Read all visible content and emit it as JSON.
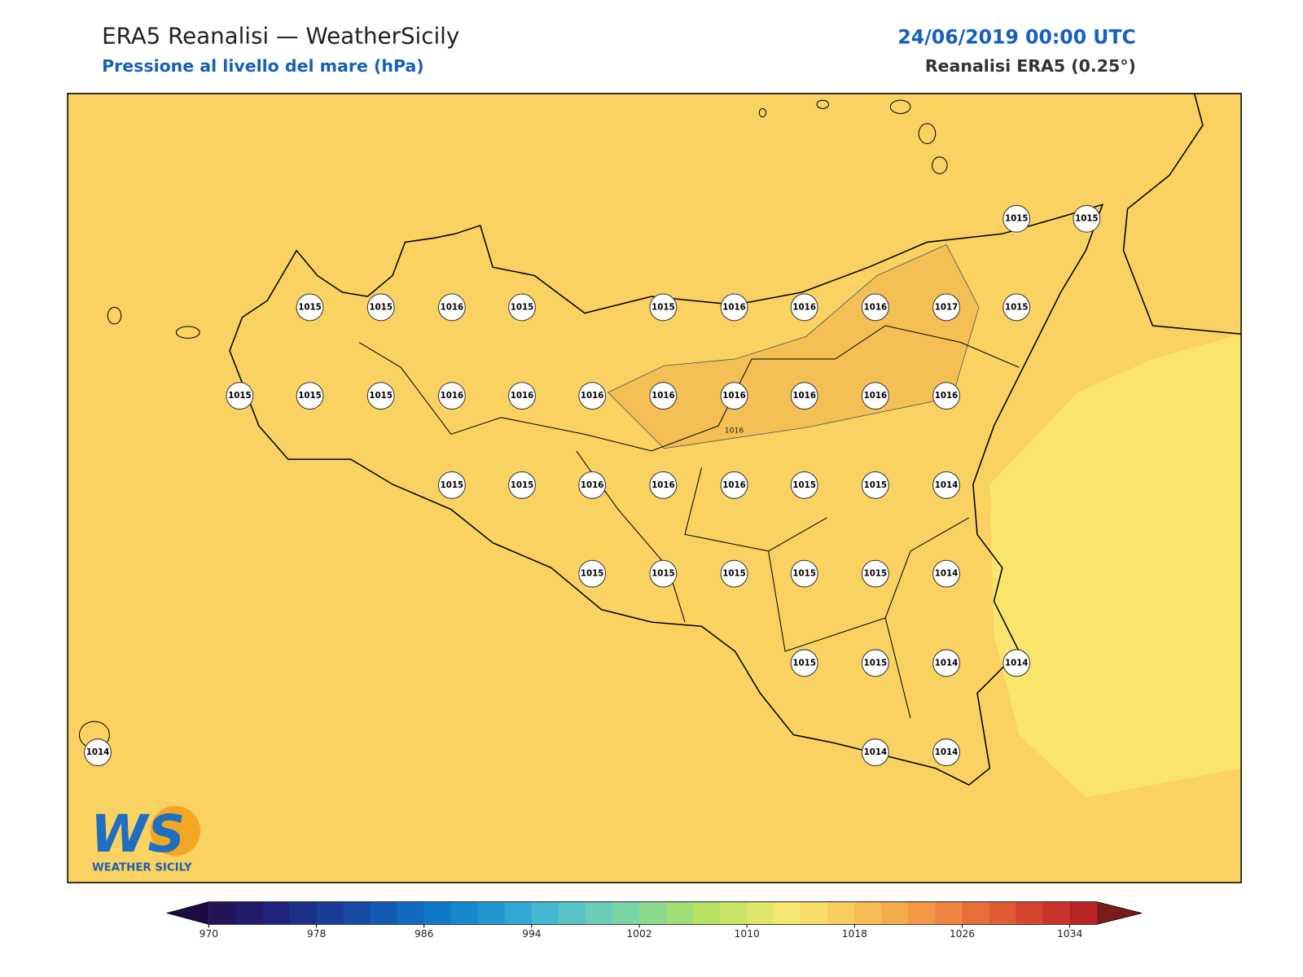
{
  "header": {
    "title": "ERA5 Reanalisi — WeatherSicily",
    "subtitle": "Pressione al livello del mare (hPa)",
    "date": "24/06/2019 00:00 UTC",
    "source": "Reanalisi ERA5 (0.25°)"
  },
  "map": {
    "contour_label": "1016",
    "stations": [
      1015,
      1015,
      1015,
      1015,
      1016,
      1015,
      1015,
      1016,
      1016,
      1016,
      1017,
      1015,
      1015,
      1015,
      1015,
      1016,
      1016,
      1016,
      1016,
      1016,
      1016,
      1016,
      1016,
      1015,
      1015,
      1016,
      1016,
      1016,
      1015,
      1015,
      1014,
      1015,
      1015,
      1015,
      1015,
      1015,
      1014,
      1015,
      1015,
      1014,
      1014,
      1014,
      1014,
      1014
    ]
  },
  "colorbar": {
    "range": [
      970,
      1036
    ],
    "ticks": [
      970,
      978,
      986,
      994,
      1002,
      1010,
      1018,
      1026,
      1034
    ],
    "under_color": "#1c0c45",
    "over_color": "#7a1c1c",
    "colors": [
      "#24145a",
      "#221a6a",
      "#1f247a",
      "#1d3088",
      "#1a3c96",
      "#174aa4",
      "#145ab2",
      "#126ac0",
      "#1279c8",
      "#1888cc",
      "#2297d0",
      "#30a8d2",
      "#44b8d0",
      "#58c4c6",
      "#6acdb8",
      "#7ad4a4",
      "#8cda8e",
      "#a0de78",
      "#b6e266",
      "#cce464",
      "#e0e66a",
      "#f4e670",
      "#fadc68",
      "#f8cc5e",
      "#f6bc56",
      "#f4aa4e",
      "#f29846",
      "#ee8440",
      "#e86e3a",
      "#e05a34",
      "#d6462e",
      "#c8342a",
      "#b82426"
    ],
    "logo": {
      "mark": "WS",
      "name": "WEATHER SICILY"
    }
  }
}
